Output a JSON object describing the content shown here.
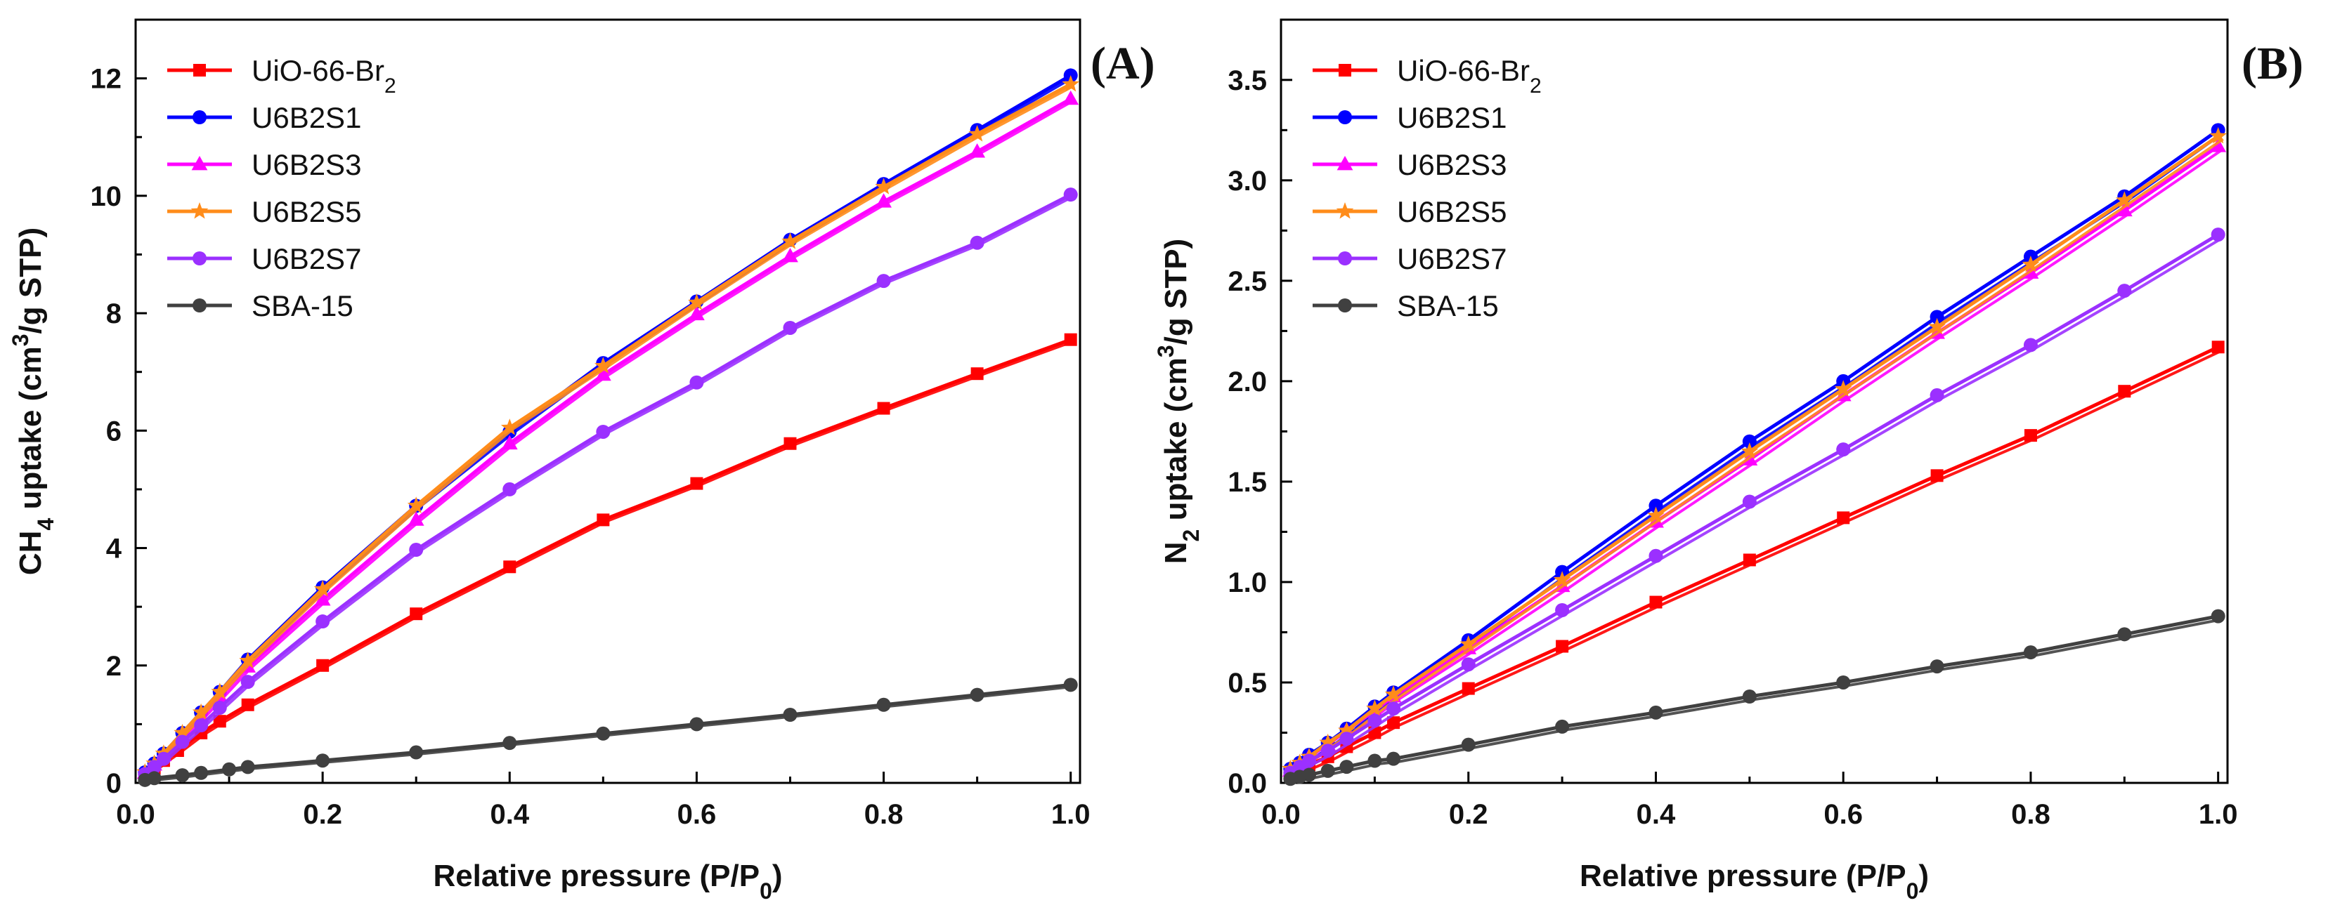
{
  "chart_data": [
    {
      "type": "line",
      "panel_label": "(A)",
      "xlabel": "Relative pressure (P/P",
      "xlabel_sub": "0",
      "xlabel_end": ")",
      "ylabel_pre": "CH",
      "ylabel_sub": "4",
      "ylabel_mid": " uptake (cm",
      "ylabel_sup": "3",
      "ylabel_end": "/g STP)",
      "xlim": [
        0,
        1.01
      ],
      "ylim": [
        0,
        13
      ],
      "xticks": [
        0.0,
        0.2,
        0.4,
        0.6,
        0.8,
        1.0
      ],
      "xtick_labels": [
        "0.0",
        "0.2",
        "0.4",
        "0.6",
        "0.8",
        "1.0"
      ],
      "yticks": [
        0,
        2,
        4,
        6,
        8,
        10,
        12
      ],
      "ytick_labels": [
        "0",
        "2",
        "4",
        "6",
        "8",
        "10",
        "12"
      ],
      "legend_position": "top-left",
      "series": [
        {
          "name": "UiO-66-Br",
          "name_sub": "2",
          "color": "#ff0000",
          "marker": "square",
          "x": [
            0.01,
            0.02,
            0.03,
            0.045,
            0.07,
            0.09,
            0.12,
            0.2,
            0.3,
            0.4,
            0.5,
            0.6,
            0.7,
            0.8,
            0.9,
            1.0
          ],
          "y": [
            0.13,
            0.25,
            0.38,
            0.55,
            0.85,
            1.05,
            1.33,
            2.0,
            2.88,
            3.68,
            4.48,
            5.1,
            5.78,
            6.38,
            6.97,
            7.55
          ]
        },
        {
          "name": "U6B2S1",
          "color": "#0000ff",
          "marker": "circle",
          "x": [
            0.01,
            0.02,
            0.03,
            0.05,
            0.07,
            0.09,
            0.12,
            0.2,
            0.3,
            0.4,
            0.5,
            0.6,
            0.7,
            0.8,
            0.9,
            1.0
          ],
          "y": [
            0.18,
            0.33,
            0.5,
            0.85,
            1.2,
            1.55,
            2.1,
            3.33,
            4.72,
            5.98,
            7.15,
            8.2,
            9.25,
            10.2,
            11.12,
            12.05
          ]
        },
        {
          "name": "U6B2S3",
          "color": "#ff00ff",
          "marker": "triangle",
          "x": [
            0.01,
            0.02,
            0.03,
            0.05,
            0.07,
            0.09,
            0.12,
            0.2,
            0.3,
            0.4,
            0.5,
            0.6,
            0.7,
            0.8,
            0.9,
            1.0
          ],
          "y": [
            0.17,
            0.31,
            0.47,
            0.8,
            1.13,
            1.47,
            1.98,
            3.12,
            4.48,
            5.78,
            6.95,
            7.98,
            8.97,
            9.9,
            10.75,
            11.65
          ]
        },
        {
          "name": "U6B2S5",
          "color": "#ff8c1a",
          "marker": "star",
          "x": [
            0.01,
            0.02,
            0.03,
            0.05,
            0.07,
            0.09,
            0.12,
            0.2,
            0.3,
            0.4,
            0.5,
            0.6,
            0.7,
            0.8,
            0.9,
            1.0
          ],
          "y": [
            0.18,
            0.33,
            0.5,
            0.85,
            1.2,
            1.55,
            2.08,
            3.3,
            4.72,
            6.05,
            7.1,
            8.18,
            9.22,
            10.15,
            11.05,
            11.9
          ]
        },
        {
          "name": "U6B2S7",
          "color": "#9b30ff",
          "marker": "circle",
          "x": [
            0.01,
            0.02,
            0.03,
            0.05,
            0.07,
            0.09,
            0.12,
            0.2,
            0.3,
            0.4,
            0.5,
            0.6,
            0.7,
            0.8,
            0.9,
            1.0
          ],
          "y": [
            0.15,
            0.27,
            0.41,
            0.7,
            0.98,
            1.28,
            1.72,
            2.75,
            3.97,
            5.0,
            5.98,
            6.82,
            7.75,
            8.55,
            9.2,
            10.02
          ]
        },
        {
          "name": "SBA-15",
          "color": "#404040",
          "marker": "circle",
          "x": [
            0.01,
            0.02,
            0.05,
            0.07,
            0.1,
            0.12,
            0.2,
            0.3,
            0.4,
            0.5,
            0.6,
            0.7,
            0.8,
            0.9,
            1.0
          ],
          "y": [
            0.05,
            0.08,
            0.13,
            0.17,
            0.23,
            0.27,
            0.38,
            0.52,
            0.68,
            0.84,
            1.0,
            1.16,
            1.33,
            1.5,
            1.67
          ]
        }
      ]
    },
    {
      "type": "line",
      "panel_label": "(B)",
      "xlabel": "Relative pressure (P/P",
      "xlabel_sub": "0",
      "xlabel_end": ")",
      "ylabel_pre": "N",
      "ylabel_sub": "2",
      "ylabel_mid": " uptake (cm",
      "ylabel_sup": "3",
      "ylabel_end": "/g STP)",
      "xlim": [
        0,
        1.01
      ],
      "ylim": [
        0,
        3.8
      ],
      "xticks": [
        0.0,
        0.2,
        0.4,
        0.6,
        0.8,
        1.0
      ],
      "xtick_labels": [
        "0.0",
        "0.2",
        "0.4",
        "0.6",
        "0.8",
        "1.0"
      ],
      "yticks": [
        0,
        0.5,
        1.0,
        1.5,
        2.0,
        2.5,
        3.0,
        3.5
      ],
      "ytick_labels": [
        "0.0",
        "0.5",
        "1.0",
        "1.5",
        "2.0",
        "2.5",
        "3.0",
        "3.5"
      ],
      "legend_position": "top-left",
      "series": [
        {
          "name": "UiO-66-Br",
          "name_sub": "2",
          "color": "#ff0000",
          "marker": "square",
          "x": [
            0.01,
            0.02,
            0.03,
            0.05,
            0.07,
            0.1,
            0.12,
            0.2,
            0.3,
            0.4,
            0.5,
            0.6,
            0.7,
            0.8,
            0.9,
            1.0
          ],
          "y": [
            0.05,
            0.07,
            0.09,
            0.13,
            0.18,
            0.25,
            0.3,
            0.47,
            0.68,
            0.9,
            1.11,
            1.32,
            1.53,
            1.73,
            1.95,
            2.17
          ]
        },
        {
          "name": "U6B2S1",
          "color": "#0000ff",
          "marker": "circle",
          "x": [
            0.01,
            0.02,
            0.03,
            0.05,
            0.07,
            0.1,
            0.12,
            0.2,
            0.3,
            0.4,
            0.5,
            0.6,
            0.7,
            0.8,
            0.9,
            1.0
          ],
          "y": [
            0.07,
            0.1,
            0.14,
            0.2,
            0.27,
            0.38,
            0.45,
            0.71,
            1.05,
            1.38,
            1.7,
            2.0,
            2.32,
            2.62,
            2.92,
            3.25
          ]
        },
        {
          "name": "U6B2S3",
          "color": "#ff00ff",
          "marker": "triangle",
          "x": [
            0.01,
            0.02,
            0.03,
            0.05,
            0.07,
            0.1,
            0.12,
            0.2,
            0.3,
            0.4,
            0.5,
            0.6,
            0.7,
            0.8,
            0.9,
            1.0
          ],
          "y": [
            0.06,
            0.09,
            0.13,
            0.19,
            0.26,
            0.36,
            0.43,
            0.67,
            0.98,
            1.3,
            1.61,
            1.93,
            2.24,
            2.54,
            2.85,
            3.17
          ]
        },
        {
          "name": "U6B2S5",
          "color": "#ff8c1a",
          "marker": "star",
          "x": [
            0.01,
            0.02,
            0.03,
            0.05,
            0.07,
            0.1,
            0.12,
            0.2,
            0.3,
            0.4,
            0.5,
            0.6,
            0.7,
            0.8,
            0.9,
            1.0
          ],
          "y": [
            0.07,
            0.1,
            0.13,
            0.2,
            0.26,
            0.37,
            0.44,
            0.69,
            1.01,
            1.33,
            1.65,
            1.96,
            2.27,
            2.58,
            2.9,
            3.22
          ]
        },
        {
          "name": "U6B2S7",
          "color": "#9b30ff",
          "marker": "circle",
          "x": [
            0.01,
            0.02,
            0.03,
            0.05,
            0.07,
            0.1,
            0.12,
            0.2,
            0.3,
            0.4,
            0.5,
            0.6,
            0.7,
            0.8,
            0.9,
            1.0
          ],
          "y": [
            0.05,
            0.08,
            0.11,
            0.16,
            0.22,
            0.31,
            0.37,
            0.59,
            0.86,
            1.13,
            1.4,
            1.66,
            1.93,
            2.18,
            2.45,
            2.73
          ]
        },
        {
          "name": "SBA-15",
          "color": "#404040",
          "marker": "circle",
          "x": [
            0.01,
            0.02,
            0.03,
            0.05,
            0.07,
            0.1,
            0.12,
            0.2,
            0.3,
            0.4,
            0.5,
            0.6,
            0.7,
            0.8,
            0.9,
            1.0
          ],
          "y": [
            0.02,
            0.03,
            0.04,
            0.06,
            0.08,
            0.11,
            0.12,
            0.19,
            0.28,
            0.35,
            0.43,
            0.5,
            0.58,
            0.65,
            0.74,
            0.83
          ]
        }
      ]
    }
  ]
}
